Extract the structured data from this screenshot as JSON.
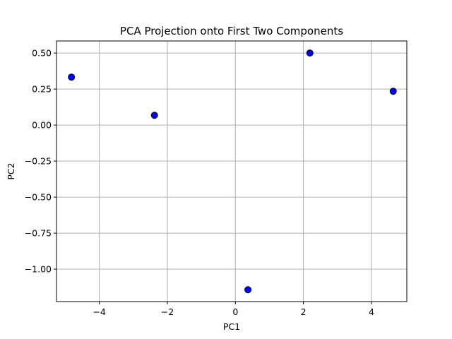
{
  "chart_data": {
    "type": "scatter",
    "title": "PCA Projection onto First Two Components",
    "xlabel": "PC1",
    "ylabel": "PC2",
    "xlim": [
      -5.26,
      5.04
    ],
    "ylim": [
      -1.225,
      0.584
    ],
    "xticks": [
      -4,
      -2,
      0,
      2,
      4
    ],
    "xtick_labels": [
      "−4",
      "−2",
      "0",
      "2",
      "4"
    ],
    "yticks": [
      0.5,
      0.25,
      0.0,
      -0.25,
      -0.5,
      -0.75,
      -1.0
    ],
    "ytick_labels": [
      "0.50",
      "0.25",
      "0.00",
      "−0.25",
      "−0.50",
      "−0.75",
      "−1.00"
    ],
    "grid": true,
    "point_color": "#0000ff",
    "edge_color": "#000000",
    "points": [
      {
        "x": -4.82,
        "y": 0.333
      },
      {
        "x": -2.38,
        "y": 0.068
      },
      {
        "x": 0.37,
        "y": -1.143
      },
      {
        "x": 2.19,
        "y": 0.5
      },
      {
        "x": 4.64,
        "y": 0.235
      }
    ]
  }
}
